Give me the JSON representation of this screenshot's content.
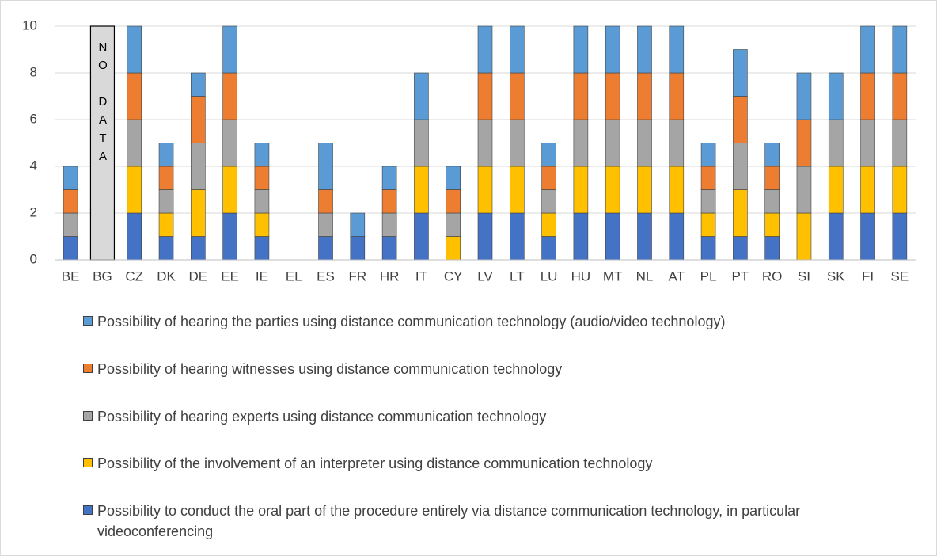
{
  "chart_data": {
    "type": "stacked_bar",
    "categories": [
      "BE",
      "BG",
      "CZ",
      "DK",
      "DE",
      "EE",
      "IE",
      "EL",
      "ES",
      "FR",
      "HR",
      "IT",
      "CY",
      "LV",
      "LT",
      "LU",
      "HU",
      "MT",
      "NL",
      "AT",
      "PL",
      "PT",
      "RO",
      "SI",
      "SK",
      "FI",
      "SE"
    ],
    "series": [
      {
        "name": "Possibility to conduct the oral part of the procedure entirely via distance communication technology, in particular videoconferencing",
        "color": "#4472c4",
        "values": [
          1,
          null,
          2,
          1,
          1,
          2,
          1,
          0,
          1,
          1,
          1,
          2,
          0,
          2,
          2,
          1,
          2,
          2,
          2,
          2,
          1,
          1,
          1,
          0,
          2,
          2,
          2
        ]
      },
      {
        "name": "Possibility of the involvement of an interpreter  using distance communication technology",
        "color": "#ffc000",
        "values": [
          0,
          null,
          2,
          1,
          2,
          2,
          1,
          0,
          0,
          0,
          0,
          2,
          1,
          2,
          2,
          1,
          2,
          2,
          2,
          2,
          1,
          2,
          1,
          2,
          2,
          2,
          2
        ]
      },
      {
        "name": "Possibility of hearing experts using distance communication technology",
        "color": "#a5a5a5",
        "values": [
          1,
          null,
          2,
          1,
          2,
          2,
          1,
          0,
          1,
          0,
          1,
          2,
          1,
          2,
          2,
          1,
          2,
          2,
          2,
          2,
          1,
          2,
          1,
          2,
          2,
          2,
          2
        ]
      },
      {
        "name": "Possibility of hearing witnesses using distance communication technology",
        "color": "#ed7d31",
        "values": [
          1,
          null,
          2,
          1,
          2,
          2,
          1,
          0,
          1,
          0,
          1,
          0,
          1,
          2,
          2,
          1,
          2,
          2,
          2,
          2,
          1,
          2,
          1,
          2,
          0,
          2,
          2
        ]
      },
      {
        "name": "Possibility of hearing the parties using distance communication technology (audio/video technology)",
        "color": "#5b9bd5",
        "values": [
          1,
          null,
          2,
          1,
          1,
          2,
          1,
          0,
          2,
          1,
          1,
          2,
          1,
          2,
          2,
          1,
          2,
          2,
          2,
          2,
          1,
          2,
          1,
          2,
          2,
          2,
          2
        ]
      }
    ],
    "annotations": [
      {
        "text": "NO DATA",
        "category": "BG"
      }
    ],
    "ylim": [
      0,
      10
    ],
    "yticks": [
      0,
      2,
      4,
      6,
      8,
      10
    ],
    "grid": true
  }
}
